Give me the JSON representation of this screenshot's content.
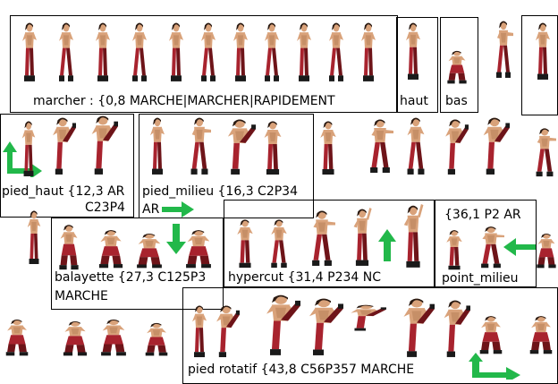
{
  "labels": {
    "marcher": "marcher : {0,8 MARCHE|MARCHER|RAPIDEMENT",
    "haut": "haut",
    "bas": "bas",
    "pied_haut_1": "pied_haut {12,3 AR",
    "pied_haut_2": "C23P4",
    "pied_milieu_1": "pied_milieu {16,3 C2P34",
    "pied_milieu_2": "AR",
    "balayette_1": "balayette {27,3 C125P3",
    "balayette_2": "MARCHE",
    "hypercut": "hypercut {31,4 P234 NC",
    "point_milieu_1": "{36,1 P2 AR",
    "point_milieu_2": "point_milieu",
    "pied_rotatif": "pied  rotatif {43,8 C56P357 MARCHE"
  },
  "colors": {
    "skin": "#d9a27a",
    "skin_shadow": "#b07850",
    "hair": "#2a1a12",
    "pants": "#a8232e",
    "pants_dark": "#6e1419",
    "boots": "#1a1a1a",
    "arrow": "#22b84a"
  },
  "icons": [
    "fighter-sprite-icon",
    "green-arrow-icon"
  ]
}
